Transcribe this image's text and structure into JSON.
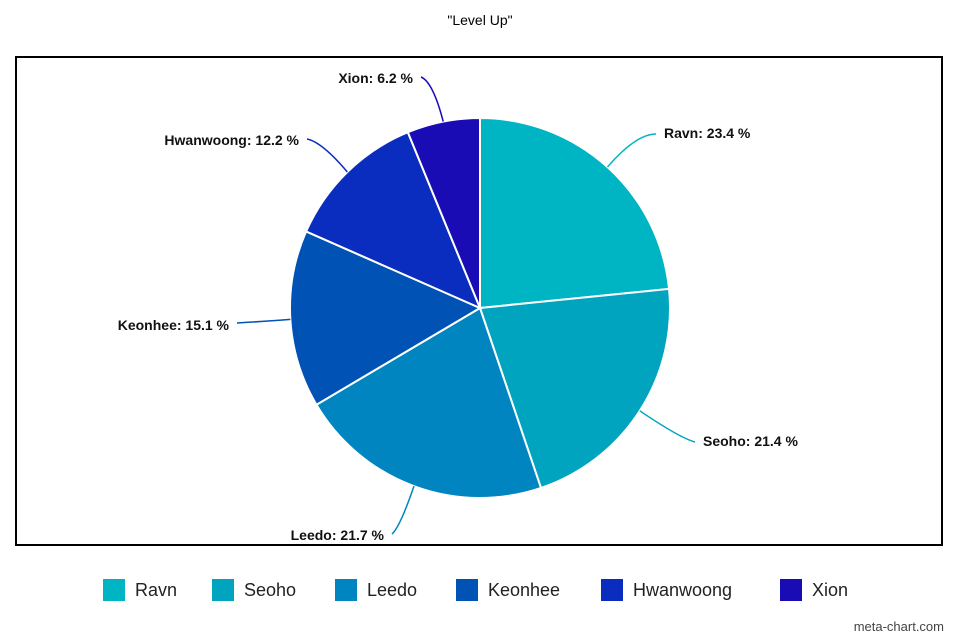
{
  "chart_data": {
    "type": "pie",
    "title": "\"Level Up\"",
    "slices": [
      {
        "name": "Ravn",
        "value": 23.4,
        "label": "Ravn: 23.4 %",
        "color": "#00b5c3"
      },
      {
        "name": "Seoho",
        "value": 21.4,
        "label": "Seoho: 21.4 %",
        "color": "#00a4bf"
      },
      {
        "name": "Leedo",
        "value": 21.7,
        "label": "Leedo: 21.7 %",
        "color": "#0085c0"
      },
      {
        "name": "Keonhee",
        "value": 15.1,
        "label": "Keonhee: 15.1 %",
        "color": "#0052b4"
      },
      {
        "name": "Hwanwoong",
        "value": 12.2,
        "label": "Hwanwoong: 12.2 %",
        "color": "#0a2dbf"
      },
      {
        "name": "Xion",
        "value": 6.2,
        "label": "Xion: 6.2 %",
        "color": "#1a0cb5"
      }
    ],
    "legend": {
      "placement": "bottom",
      "entries": [
        "Ravn",
        "Seoho",
        "Leedo",
        "Keonhee",
        "Hwanwoong",
        "Xion"
      ]
    }
  },
  "watermark": "meta-chart.com"
}
